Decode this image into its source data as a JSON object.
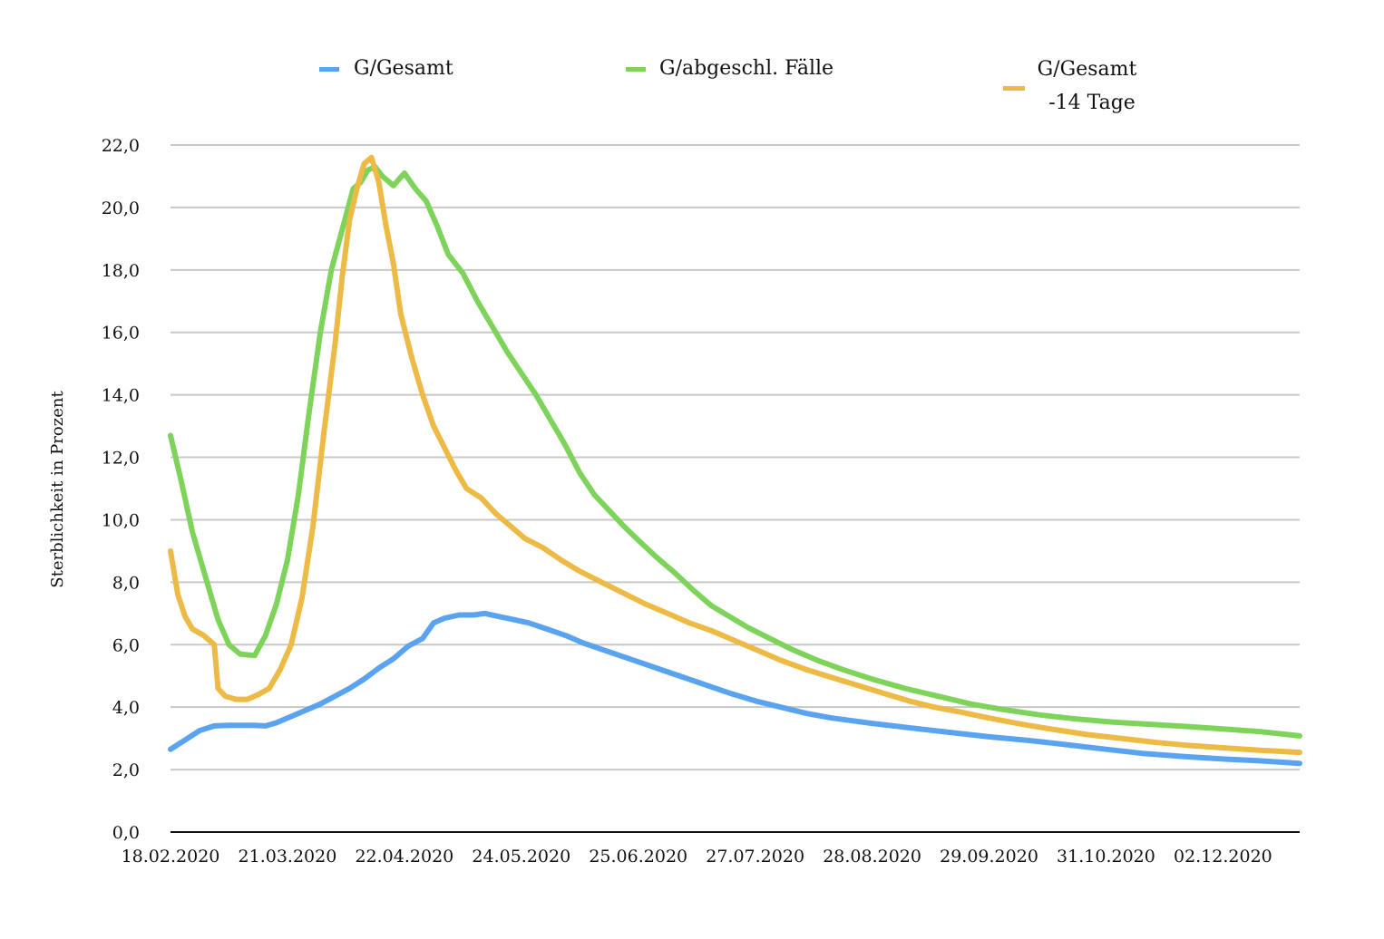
{
  "chart_data": {
    "type": "line",
    "title": "",
    "xlabel": "",
    "ylabel": "Sterblichkeit in Prozent",
    "ylim": [
      0,
      22
    ],
    "yticks": [
      "0,0",
      "2,0",
      "4,0",
      "6,0",
      "8,0",
      "10,0",
      "12,0",
      "14,0",
      "16,0",
      "18,0",
      "20,0",
      "22,0"
    ],
    "xticks": [
      "18.02.2020",
      "21.03.2020",
      "22.04.2020",
      "24.05.2020",
      "25.06.2020",
      "27.07.2020",
      "28.08.2020",
      "29.09.2020",
      "31.10.2020",
      "02.12.2020"
    ],
    "xrange": [
      "2020-02-18",
      "2020-12-23"
    ],
    "grid": true,
    "legend_position": "top",
    "series": [
      {
        "name": "G/Gesamt",
        "color": "#5aa3ee",
        "points": [
          [
            "2020-02-18",
            2.65
          ],
          [
            "2020-02-22",
            2.95
          ],
          [
            "2020-02-26",
            3.25
          ],
          [
            "2020-03-01",
            3.4
          ],
          [
            "2020-03-05",
            3.42
          ],
          [
            "2020-03-12",
            3.42
          ],
          [
            "2020-03-15",
            3.4
          ],
          [
            "2020-03-18",
            3.5
          ],
          [
            "2020-03-22",
            3.7
          ],
          [
            "2020-03-26",
            3.9
          ],
          [
            "2020-03-30",
            4.1
          ],
          [
            "2020-04-03",
            4.35
          ],
          [
            "2020-04-07",
            4.6
          ],
          [
            "2020-04-11",
            4.9
          ],
          [
            "2020-04-15",
            5.25
          ],
          [
            "2020-04-19",
            5.55
          ],
          [
            "2020-04-23",
            5.95
          ],
          [
            "2020-04-27",
            6.2
          ],
          [
            "2020-04-30",
            6.7
          ],
          [
            "2020-05-03",
            6.85
          ],
          [
            "2020-05-07",
            6.95
          ],
          [
            "2020-05-11",
            6.95
          ],
          [
            "2020-05-14",
            7.0
          ],
          [
            "2020-05-18",
            6.9
          ],
          [
            "2020-05-22",
            6.8
          ],
          [
            "2020-05-26",
            6.7
          ],
          [
            "2020-05-31",
            6.5
          ],
          [
            "2020-06-05",
            6.3
          ],
          [
            "2020-06-10",
            6.05
          ],
          [
            "2020-06-15",
            5.85
          ],
          [
            "2020-06-20",
            5.65
          ],
          [
            "2020-06-25",
            5.45
          ],
          [
            "2020-06-30",
            5.25
          ],
          [
            "2020-07-05",
            5.05
          ],
          [
            "2020-07-10",
            4.85
          ],
          [
            "2020-07-15",
            4.65
          ],
          [
            "2020-07-20",
            4.45
          ],
          [
            "2020-07-27",
            4.2
          ],
          [
            "2020-08-03",
            4.0
          ],
          [
            "2020-08-10",
            3.8
          ],
          [
            "2020-08-17",
            3.65
          ],
          [
            "2020-08-28",
            3.48
          ],
          [
            "2020-09-08",
            3.33
          ],
          [
            "2020-09-19",
            3.18
          ],
          [
            "2020-09-29",
            3.05
          ],
          [
            "2020-10-10",
            2.93
          ],
          [
            "2020-10-20",
            2.8
          ],
          [
            "2020-10-31",
            2.65
          ],
          [
            "2020-11-10",
            2.52
          ],
          [
            "2020-11-21",
            2.42
          ],
          [
            "2020-12-02",
            2.34
          ],
          [
            "2020-12-12",
            2.28
          ],
          [
            "2020-12-23",
            2.2
          ]
        ]
      },
      {
        "name": "G/abgeschl. Fälle",
        "color": "#7ed35a",
        "points": [
          [
            "2020-02-18",
            12.7
          ],
          [
            "2020-02-21",
            11.2
          ],
          [
            "2020-02-24",
            9.6
          ],
          [
            "2020-02-28",
            8.0
          ],
          [
            "2020-03-02",
            6.8
          ],
          [
            "2020-03-05",
            6.0
          ],
          [
            "2020-03-08",
            5.7
          ],
          [
            "2020-03-12",
            5.65
          ],
          [
            "2020-03-15",
            6.3
          ],
          [
            "2020-03-18",
            7.3
          ],
          [
            "2020-03-21",
            8.7
          ],
          [
            "2020-03-24",
            10.8
          ],
          [
            "2020-03-27",
            13.5
          ],
          [
            "2020-03-30",
            16.0
          ],
          [
            "2020-04-02",
            18.0
          ],
          [
            "2020-04-05",
            19.3
          ],
          [
            "2020-04-08",
            20.6
          ],
          [
            "2020-04-10",
            20.8
          ],
          [
            "2020-04-12",
            21.2
          ],
          [
            "2020-04-14",
            21.3
          ],
          [
            "2020-04-16",
            21.0
          ],
          [
            "2020-04-19",
            20.7
          ],
          [
            "2020-04-22",
            21.1
          ],
          [
            "2020-04-25",
            20.6
          ],
          [
            "2020-04-28",
            20.2
          ],
          [
            "2020-05-01",
            19.4
          ],
          [
            "2020-05-04",
            18.5
          ],
          [
            "2020-05-08",
            17.9
          ],
          [
            "2020-05-12",
            17.0
          ],
          [
            "2020-05-16",
            16.2
          ],
          [
            "2020-05-20",
            15.4
          ],
          [
            "2020-05-24",
            14.7
          ],
          [
            "2020-05-28",
            14.0
          ],
          [
            "2020-06-01",
            13.2
          ],
          [
            "2020-06-05",
            12.4
          ],
          [
            "2020-06-09",
            11.5
          ],
          [
            "2020-06-13",
            10.8
          ],
          [
            "2020-06-17",
            10.3
          ],
          [
            "2020-06-21",
            9.8
          ],
          [
            "2020-06-25",
            9.35
          ],
          [
            "2020-06-30",
            8.8
          ],
          [
            "2020-07-05",
            8.3
          ],
          [
            "2020-07-10",
            7.75
          ],
          [
            "2020-07-15",
            7.25
          ],
          [
            "2020-07-20",
            6.9
          ],
          [
            "2020-07-25",
            6.55
          ],
          [
            "2020-07-31",
            6.2
          ],
          [
            "2020-08-06",
            5.85
          ],
          [
            "2020-08-13",
            5.5
          ],
          [
            "2020-08-20",
            5.2
          ],
          [
            "2020-08-28",
            4.9
          ],
          [
            "2020-09-06",
            4.6
          ],
          [
            "2020-09-15",
            4.35
          ],
          [
            "2020-09-24",
            4.1
          ],
          [
            "2020-10-03",
            3.92
          ],
          [
            "2020-10-13",
            3.75
          ],
          [
            "2020-10-23",
            3.62
          ],
          [
            "2020-11-02",
            3.52
          ],
          [
            "2020-11-12",
            3.45
          ],
          [
            "2020-11-22",
            3.38
          ],
          [
            "2020-12-02",
            3.3
          ],
          [
            "2020-12-12",
            3.22
          ],
          [
            "2020-12-23",
            3.08
          ]
        ]
      },
      {
        "name": "G/Gesamt\n-14 Tage",
        "color": "#ecba45",
        "points": [
          [
            "2020-02-18",
            9.0
          ],
          [
            "2020-02-20",
            7.6
          ],
          [
            "2020-02-22",
            6.9
          ],
          [
            "2020-02-24",
            6.5
          ],
          [
            "2020-02-27",
            6.3
          ],
          [
            "2020-03-01",
            6.0
          ],
          [
            "2020-03-02",
            4.6
          ],
          [
            "2020-03-04",
            4.35
          ],
          [
            "2020-03-07",
            4.25
          ],
          [
            "2020-03-10",
            4.25
          ],
          [
            "2020-03-13",
            4.4
          ],
          [
            "2020-03-16",
            4.6
          ],
          [
            "2020-03-19",
            5.2
          ],
          [
            "2020-03-22",
            6.0
          ],
          [
            "2020-03-25",
            7.5
          ],
          [
            "2020-03-28",
            9.8
          ],
          [
            "2020-03-31",
            12.8
          ],
          [
            "2020-04-03",
            15.6
          ],
          [
            "2020-04-05",
            17.8
          ],
          [
            "2020-04-07",
            19.6
          ],
          [
            "2020-04-09",
            20.6
          ],
          [
            "2020-04-11",
            21.4
          ],
          [
            "2020-04-13",
            21.6
          ],
          [
            "2020-04-15",
            20.8
          ],
          [
            "2020-04-17",
            19.4
          ],
          [
            "2020-04-19",
            18.2
          ],
          [
            "2020-04-21",
            16.6
          ],
          [
            "2020-04-24",
            15.2
          ],
          [
            "2020-04-27",
            14.0
          ],
          [
            "2020-04-30",
            13.0
          ],
          [
            "2020-05-03",
            12.3
          ],
          [
            "2020-05-06",
            11.6
          ],
          [
            "2020-05-09",
            11.0
          ],
          [
            "2020-05-13",
            10.7
          ],
          [
            "2020-05-17",
            10.2
          ],
          [
            "2020-05-21",
            9.8
          ],
          [
            "2020-05-25",
            9.4
          ],
          [
            "2020-05-30",
            9.1
          ],
          [
            "2020-06-04",
            8.7
          ],
          [
            "2020-06-09",
            8.35
          ],
          [
            "2020-06-15",
            8.0
          ],
          [
            "2020-06-21",
            7.65
          ],
          [
            "2020-06-27",
            7.3
          ],
          [
            "2020-07-03",
            7.0
          ],
          [
            "2020-07-09",
            6.7
          ],
          [
            "2020-07-15",
            6.45
          ],
          [
            "2020-07-21",
            6.15
          ],
          [
            "2020-07-27",
            5.85
          ],
          [
            "2020-08-03",
            5.5
          ],
          [
            "2020-08-10",
            5.2
          ],
          [
            "2020-08-17",
            4.95
          ],
          [
            "2020-08-24",
            4.7
          ],
          [
            "2020-08-31",
            4.45
          ],
          [
            "2020-09-07",
            4.2
          ],
          [
            "2020-09-14",
            4.0
          ],
          [
            "2020-09-21",
            3.85
          ],
          [
            "2020-09-29",
            3.65
          ],
          [
            "2020-10-08",
            3.45
          ],
          [
            "2020-10-17",
            3.28
          ],
          [
            "2020-10-26",
            3.12
          ],
          [
            "2020-11-04",
            3.0
          ],
          [
            "2020-11-13",
            2.88
          ],
          [
            "2020-11-22",
            2.78
          ],
          [
            "2020-12-02",
            2.7
          ],
          [
            "2020-12-12",
            2.62
          ],
          [
            "2020-12-23",
            2.55
          ]
        ]
      }
    ]
  }
}
